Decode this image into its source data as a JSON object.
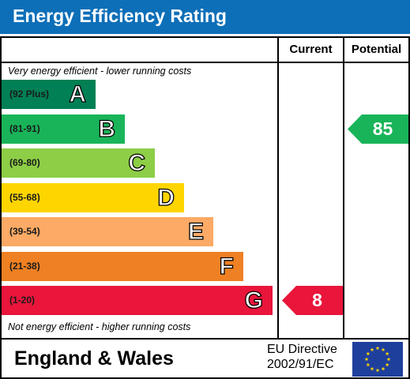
{
  "header": {
    "title": "Energy Efficiency Rating"
  },
  "columns": {
    "current": "Current",
    "potential": "Potential"
  },
  "notes": {
    "top": "Very energy efficient - lower running costs",
    "bottom": "Not energy efficient - higher running costs"
  },
  "chart_data": {
    "type": "bar",
    "title": "Energy Efficiency Rating",
    "categories": [
      "A",
      "B",
      "C",
      "D",
      "E",
      "F",
      "G"
    ],
    "bands": [
      {
        "letter": "A",
        "range": "(92 Plus)",
        "color": "#008054"
      },
      {
        "letter": "B",
        "range": "(81-91)",
        "color": "#19b459"
      },
      {
        "letter": "C",
        "range": "(69-80)",
        "color": "#8dce46"
      },
      {
        "letter": "D",
        "range": "(55-68)",
        "color": "#ffd500"
      },
      {
        "letter": "E",
        "range": "(39-54)",
        "color": "#fcaa65"
      },
      {
        "letter": "F",
        "range": "(21-38)",
        "color": "#ef8023"
      },
      {
        "letter": "G",
        "range": "(1-20)",
        "color": "#e9153b"
      }
    ],
    "current": {
      "value": 8,
      "band": "G",
      "color": "#e9153b"
    },
    "potential": {
      "value": 85,
      "band": "B",
      "color": "#19b459"
    }
  },
  "footer": {
    "region": "England & Wales",
    "directive_line1": "EU Directive",
    "directive_line2": "2002/91/EC"
  }
}
